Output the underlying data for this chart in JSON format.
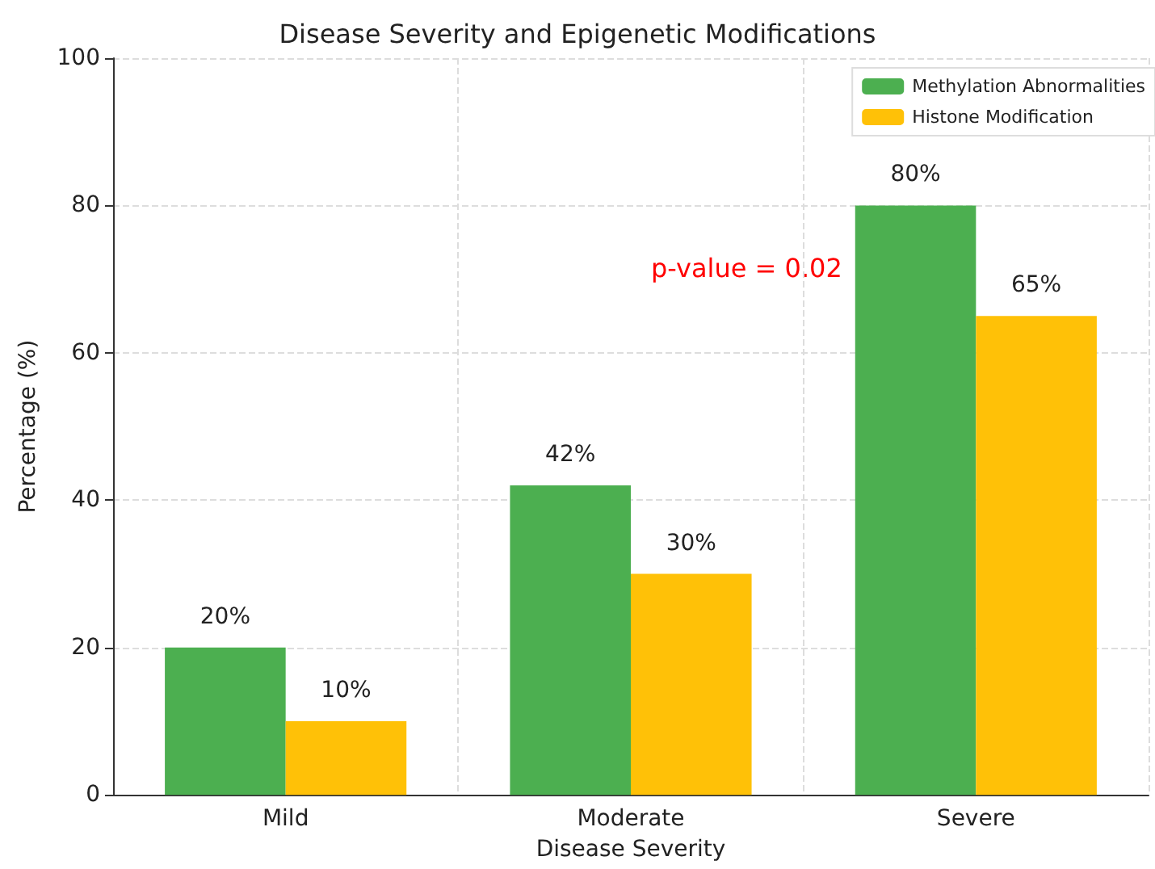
{
  "chart_data": {
    "type": "bar",
    "title": "Disease Severity and Epigenetic Modifications",
    "xlabel": "Disease Severity",
    "ylabel": "Percentage (%)",
    "categories": [
      "Mild",
      "Moderate",
      "Severe"
    ],
    "series": [
      {
        "name": "Methylation Abnormalities",
        "color": "#4caf50",
        "values": [
          20,
          42,
          80
        ],
        "value_labels": [
          "20%",
          "42%",
          "80%"
        ]
      },
      {
        "name": "Histone Modification",
        "color": "#ffc107",
        "values": [
          10,
          30,
          65
        ],
        "value_labels": [
          "10%",
          "30%",
          "65%"
        ]
      }
    ],
    "ylim": [
      0,
      100
    ],
    "yticks": [
      0,
      20,
      40,
      60,
      80,
      100
    ],
    "grid": true,
    "legend": "top right",
    "annotations": [
      "p-value = 0.02"
    ]
  }
}
